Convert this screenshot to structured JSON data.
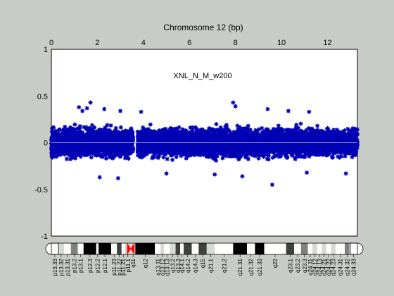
{
  "chart_data": {
    "type": "scatter",
    "title": "Chromosome 12 (bp)",
    "annotation": "XNL_N_M_w200",
    "x_axis_position": "top",
    "xlim": [
      0,
      13.3
    ],
    "ylim": [
      -1,
      1
    ],
    "xticks": [
      0,
      2,
      4,
      6,
      8,
      10,
      12
    ],
    "xtick_labels": [
      "0",
      "2",
      "4",
      "6",
      "8",
      "10",
      "12"
    ],
    "yticks": [
      -1,
      -0.5,
      0,
      0.5,
      1
    ],
    "ytick_labels": [
      "-1",
      "-0.5",
      "0",
      "0.5",
      "1"
    ],
    "grid": false,
    "legend": "none",
    "baseline_y": 0,
    "series": [
      {
        "marker": "asterisk",
        "segments": [
          {
            "x_start": 0.0,
            "x_end": 3.55,
            "y_core": 0.2,
            "y_max": 0.32
          },
          {
            "x_start": 3.75,
            "x_end": 13.3,
            "y_core": 0.2,
            "y_max": 0.32
          }
        ],
        "outliers": [
          {
            "x": 1.2,
            "y": 0.38
          },
          {
            "x": 1.35,
            "y": 0.34
          },
          {
            "x": 1.7,
            "y": 0.43
          },
          {
            "x": 1.55,
            "y": 0.37
          },
          {
            "x": 2.3,
            "y": 0.36
          },
          {
            "x": 3.0,
            "y": 0.34
          },
          {
            "x": 3.9,
            "y": 0.33
          },
          {
            "x": 7.9,
            "y": 0.43
          },
          {
            "x": 8.0,
            "y": 0.39
          },
          {
            "x": 9.4,
            "y": 0.36
          },
          {
            "x": 10.3,
            "y": 0.34
          },
          {
            "x": 11.2,
            "y": 0.33
          },
          {
            "x": 2.1,
            "y": -0.37
          },
          {
            "x": 2.9,
            "y": -0.38
          },
          {
            "x": 5.0,
            "y": -0.33
          },
          {
            "x": 7.1,
            "y": -0.34
          },
          {
            "x": 8.3,
            "y": -0.36
          },
          {
            "x": 9.6,
            "y": -0.45
          },
          {
            "x": 11.1,
            "y": -0.32
          },
          {
            "x": 12.8,
            "y": -0.33
          }
        ]
      }
    ],
    "ideogram": {
      "xlim": [
        0,
        13.3
      ],
      "centromere_x": 3.45,
      "bands": [
        {
          "label": "p13.33",
          "start": 0.0,
          "end": 0.3,
          "color": "#ffffff"
        },
        {
          "label": "p13.32",
          "start": 0.3,
          "end": 0.55,
          "color": "#d8d8d8"
        },
        {
          "label": "p13.31",
          "start": 0.55,
          "end": 0.85,
          "color": "#ffffff"
        },
        {
          "label": "p13.2",
          "start": 0.85,
          "end": 1.15,
          "color": "#808080"
        },
        {
          "label": "p13.1",
          "start": 1.15,
          "end": 1.4,
          "color": "#ffffff"
        },
        {
          "label": "p12.3",
          "start": 1.4,
          "end": 1.95,
          "color": "#000000"
        },
        {
          "label": "p12.2",
          "start": 1.95,
          "end": 2.05,
          "color": "#ffffff"
        },
        {
          "label": "p12.1",
          "start": 2.05,
          "end": 2.6,
          "color": "#000000"
        },
        {
          "label": "p11.23",
          "start": 2.6,
          "end": 2.85,
          "color": "#ffffff"
        },
        {
          "label": "p11.22",
          "start": 2.85,
          "end": 3.05,
          "color": "#404040"
        },
        {
          "label": "p11.21",
          "start": 3.05,
          "end": 3.2,
          "color": "#ffffff"
        },
        {
          "label": "p11.1",
          "start": 3.2,
          "end": 3.45,
          "color": "#d8d8d8"
        },
        {
          "label": "q11",
          "start": 3.45,
          "end": 3.65,
          "color": "#d8d8d8"
        },
        {
          "label": "q12",
          "start": 3.65,
          "end": 4.5,
          "color": "#000000"
        },
        {
          "label": "q13.11",
          "start": 4.5,
          "end": 4.75,
          "color": "#ffffff"
        },
        {
          "label": "q13.12",
          "start": 4.75,
          "end": 4.9,
          "color": "#d8d8d8"
        },
        {
          "label": "q13.13",
          "start": 4.9,
          "end": 5.15,
          "color": "#ffffff"
        },
        {
          "label": "q13.2",
          "start": 5.15,
          "end": 5.4,
          "color": "#d8d8d8"
        },
        {
          "label": "q13.3",
          "start": 5.4,
          "end": 5.6,
          "color": "#404040"
        },
        {
          "label": "q14.1",
          "start": 5.6,
          "end": 5.75,
          "color": "#ffffff"
        },
        {
          "label": "q14.2",
          "start": 5.75,
          "end": 6.1,
          "color": "#404040"
        },
        {
          "label": "q14.3",
          "start": 6.1,
          "end": 6.4,
          "color": "#ffffff"
        },
        {
          "label": "q15",
          "start": 6.4,
          "end": 6.75,
          "color": "#404040"
        },
        {
          "label": "q21.1",
          "start": 6.75,
          "end": 7.1,
          "color": "#d8d8d8"
        },
        {
          "label": "q21.2",
          "start": 7.1,
          "end": 7.9,
          "color": "#ffffff"
        },
        {
          "label": "q21.31",
          "start": 7.9,
          "end": 8.5,
          "color": "#000000"
        },
        {
          "label": "q21.32",
          "start": 8.5,
          "end": 8.85,
          "color": "#ffffff"
        },
        {
          "label": "q21.33",
          "start": 8.85,
          "end": 9.25,
          "color": "#000000"
        },
        {
          "label": "q22",
          "start": 9.25,
          "end": 10.2,
          "color": "#ffffff"
        },
        {
          "label": "q23.1",
          "start": 10.2,
          "end": 10.55,
          "color": "#404040"
        },
        {
          "label": "q23.2",
          "start": 10.55,
          "end": 10.85,
          "color": "#ffffff"
        },
        {
          "label": "q23.3",
          "start": 10.85,
          "end": 11.15,
          "color": "#808080"
        },
        {
          "label": "q24.11",
          "start": 11.15,
          "end": 11.35,
          "color": "#ffffff"
        },
        {
          "label": "q24.12",
          "start": 11.35,
          "end": 11.55,
          "color": "#d8d8d8"
        },
        {
          "label": "q24.13",
          "start": 11.55,
          "end": 11.75,
          "color": "#ffffff"
        },
        {
          "label": "q24.21",
          "start": 11.75,
          "end": 11.95,
          "color": "#d8d8d8"
        },
        {
          "label": "q24.22",
          "start": 11.95,
          "end": 12.15,
          "color": "#ffffff"
        },
        {
          "label": "q24.23",
          "start": 12.15,
          "end": 12.35,
          "color": "#d8d8d8"
        },
        {
          "label": "q24.31",
          "start": 12.35,
          "end": 12.75,
          "color": "#ffffff"
        },
        {
          "label": "q24.32",
          "start": 12.75,
          "end": 12.95,
          "color": "#808080"
        },
        {
          "label": "q24.33",
          "start": 12.95,
          "end": 13.3,
          "color": "#ffffff"
        }
      ]
    }
  },
  "colors": {
    "background": "#c8ccc6",
    "plot_area": "#ffffff",
    "points": "#0000b4",
    "baseline": "#9a9a9a",
    "centromere": "#ff0000"
  }
}
